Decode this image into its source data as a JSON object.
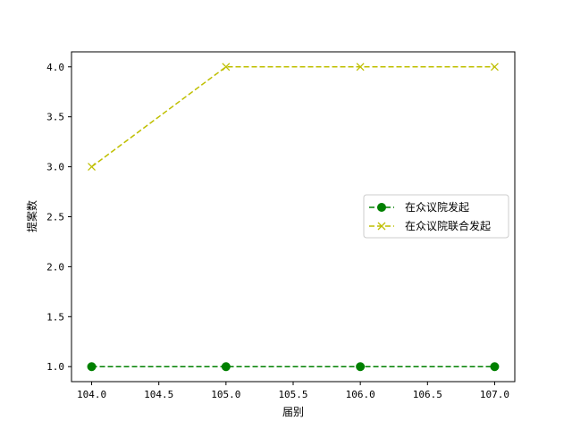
{
  "chart_data": {
    "type": "line",
    "xlabel": "届别",
    "ylabel": "提案数",
    "x": [
      104.0,
      105.0,
      106.0,
      107.0
    ],
    "xlim": [
      103.85,
      107.15
    ],
    "ylim": [
      0.85,
      4.15
    ],
    "x_ticks": [
      104.0,
      104.5,
      105.0,
      105.5,
      106.0,
      106.5,
      107.0
    ],
    "x_tick_labels": [
      "104.0",
      "104.5",
      "105.0",
      "105.5",
      "106.0",
      "106.5",
      "107.0"
    ],
    "y_ticks": [
      1.0,
      1.5,
      2.0,
      2.5,
      3.0,
      3.5,
      4.0
    ],
    "y_tick_labels": [
      "1.0",
      "1.5",
      "2.0",
      "2.5",
      "3.0",
      "3.5",
      "4.0"
    ],
    "grid": false,
    "legend_position": "center-right",
    "series": [
      {
        "name": "在众议院发起",
        "values": [
          1,
          1,
          1,
          1
        ],
        "color": "#008000",
        "marker": "circle",
        "linestyle": "dashed"
      },
      {
        "name": "在众议院联合发起",
        "values": [
          3,
          4,
          4,
          4
        ],
        "color": "#bfbf00",
        "marker": "x",
        "linestyle": "dashed"
      }
    ]
  }
}
